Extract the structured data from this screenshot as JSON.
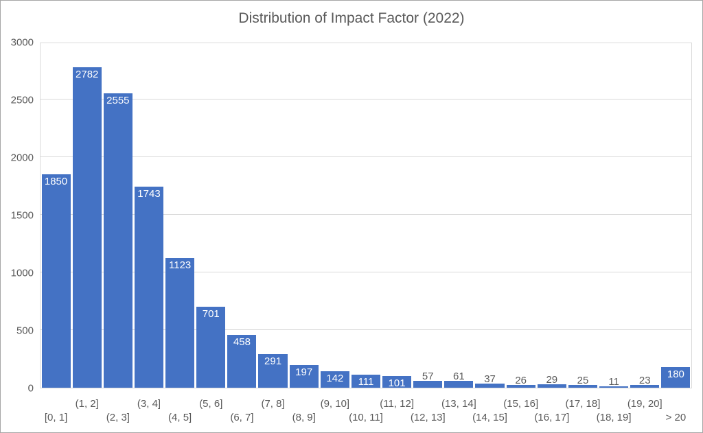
{
  "title": "Distribution of Impact Factor (2022)",
  "colors": {
    "bar": "#4472C4",
    "title_text": "#595959",
    "axis_text": "#595959",
    "gridline": "#D9D9D9",
    "data_label_inside": "#FFFFFF",
    "data_label_outside": "#595959",
    "canvas_border": "#A6A6A6"
  },
  "chart_data": {
    "type": "bar",
    "title": "Distribution of Impact Factor (2022)",
    "categories": [
      "[0, 1]",
      "(1, 2]",
      "(2, 3]",
      "(3, 4]",
      "(4, 5]",
      "(5, 6]",
      "(6, 7]",
      "(7, 8]",
      "(8, 9]",
      "(9, 10]",
      "(10, 11]",
      "(11, 12]",
      "(12, 13]",
      "(13, 14]",
      "(14, 15]",
      "(15, 16]",
      "(16, 17]",
      "(17, 18]",
      "(18, 19]",
      "(19, 20]",
      "> 20"
    ],
    "values": [
      1850,
      2782,
      2555,
      1743,
      1123,
      701,
      458,
      291,
      197,
      142,
      111,
      101,
      57,
      61,
      37,
      26,
      29,
      25,
      11,
      23,
      180
    ],
    "xlabel": "",
    "ylabel": "",
    "ylim": [
      0,
      3000
    ],
    "yticks": [
      0,
      500,
      1000,
      1500,
      2000,
      2500,
      3000
    ],
    "grid": true,
    "legend": false,
    "bar_gap": "narrow",
    "data_labels": "shown",
    "x_labels_layout": "staggered-two-rows"
  }
}
